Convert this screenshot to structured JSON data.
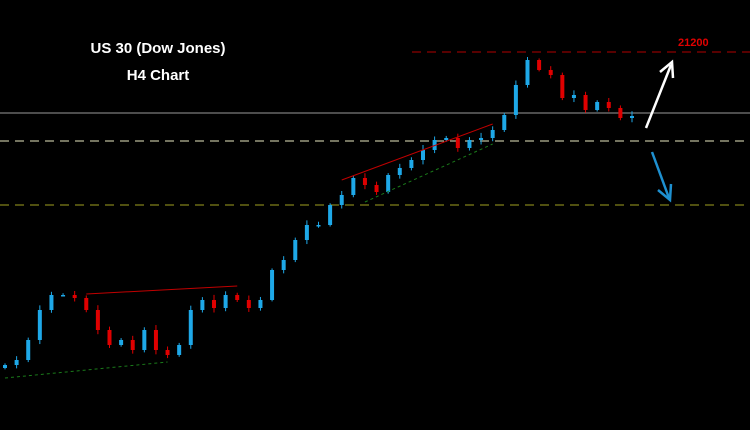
{
  "chart_data": {
    "type": "candlestick",
    "title": "US 30 (Dow Jones)",
    "subtitle": "H4 Chart",
    "ylim": [
      19310,
      21460
    ],
    "closes": [
      19635,
      19660,
      19760,
      19910,
      19985,
      19985,
      19970,
      19910,
      19810,
      19735,
      19760,
      19710,
      19810,
      19710,
      19685,
      19735,
      19910,
      19960,
      19920,
      19985,
      19960,
      19920,
      19960,
      20110,
      20160,
      20260,
      20335,
      20335,
      20435,
      20485,
      20570,
      20535,
      20500,
      20585,
      20620,
      20660,
      20710,
      20760,
      20770,
      20720,
      20760,
      20770,
      20810,
      20885,
      21035,
      21160,
      21110,
      21085,
      20970,
      20985,
      20910,
      20950,
      20920,
      20870,
      20880
    ],
    "levels": [
      {
        "label": "21200",
        "price": 21200,
        "color": "#b00000",
        "style": "dashed"
      },
      {
        "price": 20895,
        "color": "#9a9a9a",
        "style": "solid"
      },
      {
        "price": 20755,
        "color": "#e8e8c0",
        "style": "dashed"
      },
      {
        "price": 20435,
        "color": "#a0a020",
        "style": "dashed"
      }
    ],
    "trendlines": [
      {
        "from": [
          7,
          19990
        ],
        "to": [
          20,
          20030
        ],
        "color": "#c00000"
      },
      {
        "from": [
          29,
          20560
        ],
        "to": [
          42,
          20840
        ],
        "color": "#c00000"
      },
      {
        "from": [
          0,
          19570
        ],
        "to": [
          14,
          19650
        ],
        "color": "#1a7a1a"
      },
      {
        "from": [
          31,
          20450
        ],
        "to": [
          42,
          20740
        ],
        "color": "#1a7a1a"
      }
    ],
    "colors": {
      "up": "#1ea8e8",
      "down": "#e00000",
      "background": "#000000"
    },
    "arrows": [
      {
        "direction": "up",
        "color": "#ffffff"
      },
      {
        "direction": "down",
        "color": "#1e90d0"
      }
    ]
  }
}
